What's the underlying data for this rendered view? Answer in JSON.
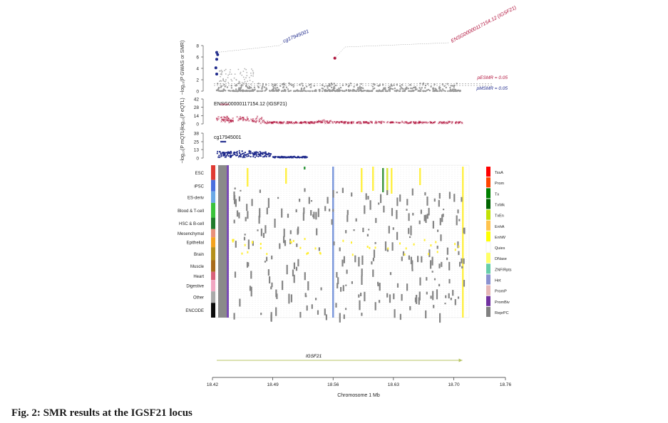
{
  "caption": "Fig. 2: SMR results at the IGSF21 locus",
  "chart_data": [
    {
      "type": "scatter",
      "panel": "gwas",
      "ylabel": "−log₁₀(P GWAS or SMR)",
      "ylim": [
        0,
        8
      ],
      "yticks": [
        0,
        2,
        4,
        6,
        8
      ],
      "xlim": [
        18.42,
        18.76
      ],
      "annotations": [
        {
          "text": "cg17945001",
          "x": 18.425,
          "y": 6.8,
          "color": "#1f2a8c"
        },
        {
          "text": "ENSG00000117154.12 (IGSF21)",
          "x": 18.562,
          "y": 5.8,
          "color": "#b0103a"
        }
      ],
      "thresholds": [
        {
          "label": "pESMR = 0.05",
          "color": "#b0103a",
          "y": 1.3
        },
        {
          "label": "pMSMR = 0.05",
          "color": "#1f2a8c",
          "y": 1.0
        }
      ],
      "series": [
        {
          "color": "#1f2a8c",
          "values": [
            [
              18.425,
              6.8
            ],
            [
              18.426,
              6.4
            ],
            [
              18.425,
              5.6
            ],
            [
              18.424,
              4.1
            ],
            [
              18.425,
              3.0
            ]
          ]
        },
        {
          "color": "#b0103a",
          "values": [
            [
              18.562,
              5.8
            ]
          ]
        }
      ]
    },
    {
      "type": "scatter",
      "panel": "eqtl",
      "title": "ENSG00000117154.12 (IGSF21)",
      "ylabel": "−log₁₀(P eQTL)",
      "ylim": [
        0,
        42
      ],
      "yticks": [
        0,
        14,
        28,
        42
      ],
      "color": "#b0103a"
    },
    {
      "type": "scatter",
      "panel": "mqtl",
      "title": "cg17945001",
      "ylabel": "−log₁₀(P mQTL)",
      "ylim": [
        0,
        38
      ],
      "yticks": [
        0,
        13,
        25,
        38
      ],
      "color": "#1f2a8c"
    },
    {
      "type": "heatmap",
      "panel": "chromatin-states",
      "tissue_groups": [
        {
          "label": "ESC",
          "color": "#e03a33"
        },
        {
          "label": "iPSC",
          "color": "#4a6fdf"
        },
        {
          "label": "ES-deriv",
          "color": "#6aa8e6"
        },
        {
          "label": "Blood & T-cell",
          "color": "#39c23a"
        },
        {
          "label": "HSC & B-cell",
          "color": "#1f7a2a"
        },
        {
          "label": "Mesenchymal",
          "color": "#e8907a"
        },
        {
          "label": "Epithelial",
          "color": "#f3a21e"
        },
        {
          "label": "Brain",
          "color": "#b58f1b"
        },
        {
          "label": "Muscle",
          "color": "#a86a1b"
        },
        {
          "label": "Heart",
          "color": "#d9607a"
        },
        {
          "label": "Digestive",
          "color": "#f1a6c2"
        },
        {
          "label": "Other",
          "color": "#a9a9a9"
        },
        {
          "label": "ENCODE",
          "color": "#0a0a0a"
        }
      ],
      "legend": [
        {
          "label": "TssA",
          "color": "#ff0000"
        },
        {
          "label": "Prom",
          "color": "#ff4500"
        },
        {
          "label": "Tx",
          "color": "#008000"
        },
        {
          "label": "TxWk",
          "color": "#006400"
        },
        {
          "label": "TxEn",
          "color": "#c2e105"
        },
        {
          "label": "EnhA",
          "color": "#ffc34d"
        },
        {
          "label": "EnhW",
          "color": "#ffff00"
        },
        {
          "label": "Quies",
          "color": "#ffffff"
        },
        {
          "label": "DNase",
          "color": "#ffff66"
        },
        {
          "label": "ZNF/Rpts",
          "color": "#66cdaa"
        },
        {
          "label": "Het",
          "color": "#8a91d0"
        },
        {
          "label": "PromP",
          "color": "#e6b8b7"
        },
        {
          "label": "PromBiv",
          "color": "#7030a0"
        },
        {
          "label": "ReprPC",
          "color": "#808080"
        }
      ]
    },
    {
      "type": "gene-track",
      "gene": "IGSF21",
      "start": 18.425,
      "end": 18.71,
      "color": "#b8c464"
    },
    {
      "type": "axis",
      "xlabel": "Chromosome 1 Mb",
      "xlim": [
        18.42,
        18.76
      ],
      "xticks": [
        "18.42",
        "18.49",
        "18.56",
        "18.63",
        "18.70",
        "18.76"
      ]
    }
  ]
}
